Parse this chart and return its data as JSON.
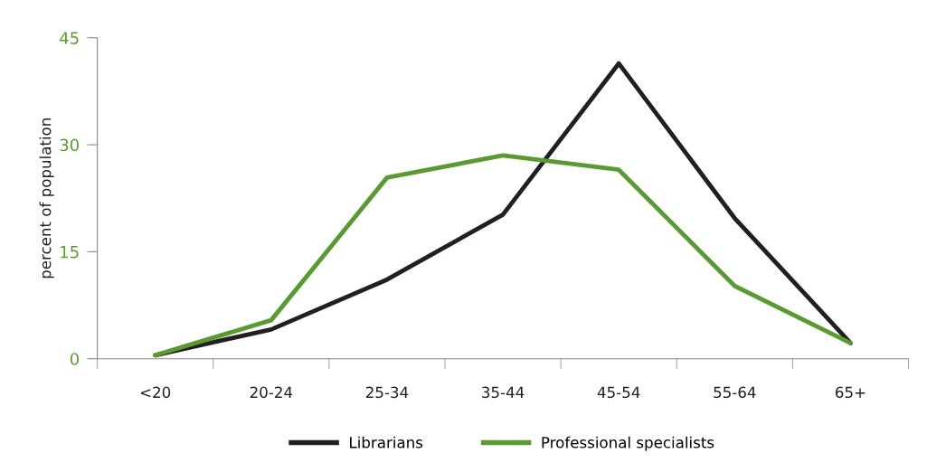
{
  "chart_data": {
    "type": "line",
    "ylabel": "percent of population",
    "categories": [
      "<20",
      "20-24",
      "25-34",
      "35-44",
      "45-54",
      "55-64",
      "65+"
    ],
    "series": [
      {
        "name": "Librarians",
        "color": "#231f20",
        "values": [
          0.5,
          4.1,
          11.1,
          20.2,
          41.4,
          19.7,
          2.2
        ]
      },
      {
        "name": "Professional specialists",
        "color": "#5a9a32",
        "values": [
          0.5,
          5.4,
          25.4,
          28.5,
          26.5,
          10.2,
          2.2
        ]
      }
    ],
    "ylim": [
      0,
      45
    ],
    "yticks": [
      0,
      15,
      30,
      45
    ],
    "grid": false,
    "legend": "bottom",
    "marker": "none",
    "line_style": "solid"
  }
}
